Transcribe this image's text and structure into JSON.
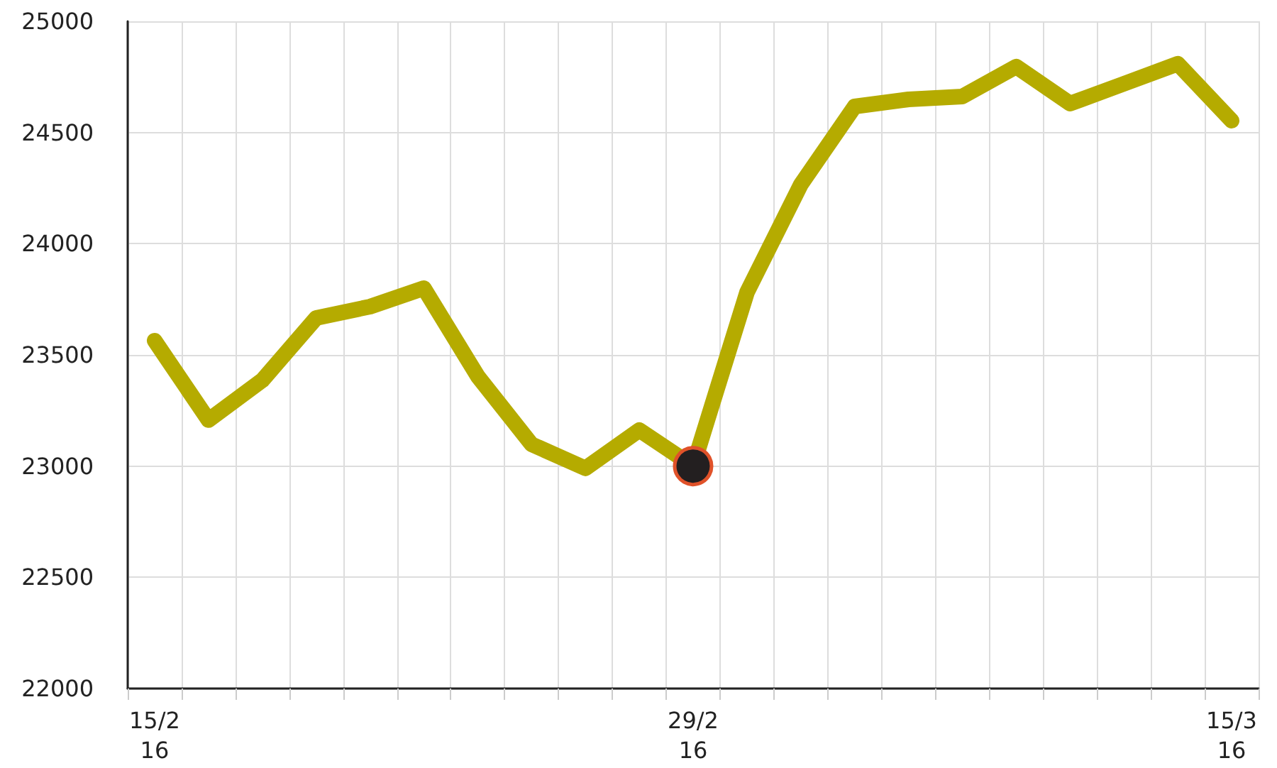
{
  "chart_data": {
    "type": "line",
    "categories": [
      "15/2\n16",
      null,
      null,
      null,
      null,
      null,
      null,
      null,
      null,
      null,
      "29/2\n16",
      null,
      null,
      null,
      null,
      null,
      null,
      null,
      null,
      null,
      "15/3\n16"
    ],
    "series": [
      {
        "color": "#b5ab00",
        "values": [
          23564,
          23207,
          23386,
          23666,
          23717,
          23800,
          23404,
          23098,
          22990,
          23162,
          23000,
          23781,
          24266,
          24617,
          24649,
          24662,
          24796,
          24630,
          24719,
          24809,
          24553
        ]
      },
      {
        "type": "scatter",
        "color": "#231f20",
        "x": [
          "29/2\n16"
        ],
        "values": [
          23000
        ],
        "marker": "circle"
      }
    ],
    "ylim": [
      22000,
      25000
    ],
    "yticks": [
      22000,
      22500,
      23000,
      23500,
      24000,
      24500,
      25000
    ],
    "grid": true,
    "marker": "none",
    "line_style": "solid"
  }
}
